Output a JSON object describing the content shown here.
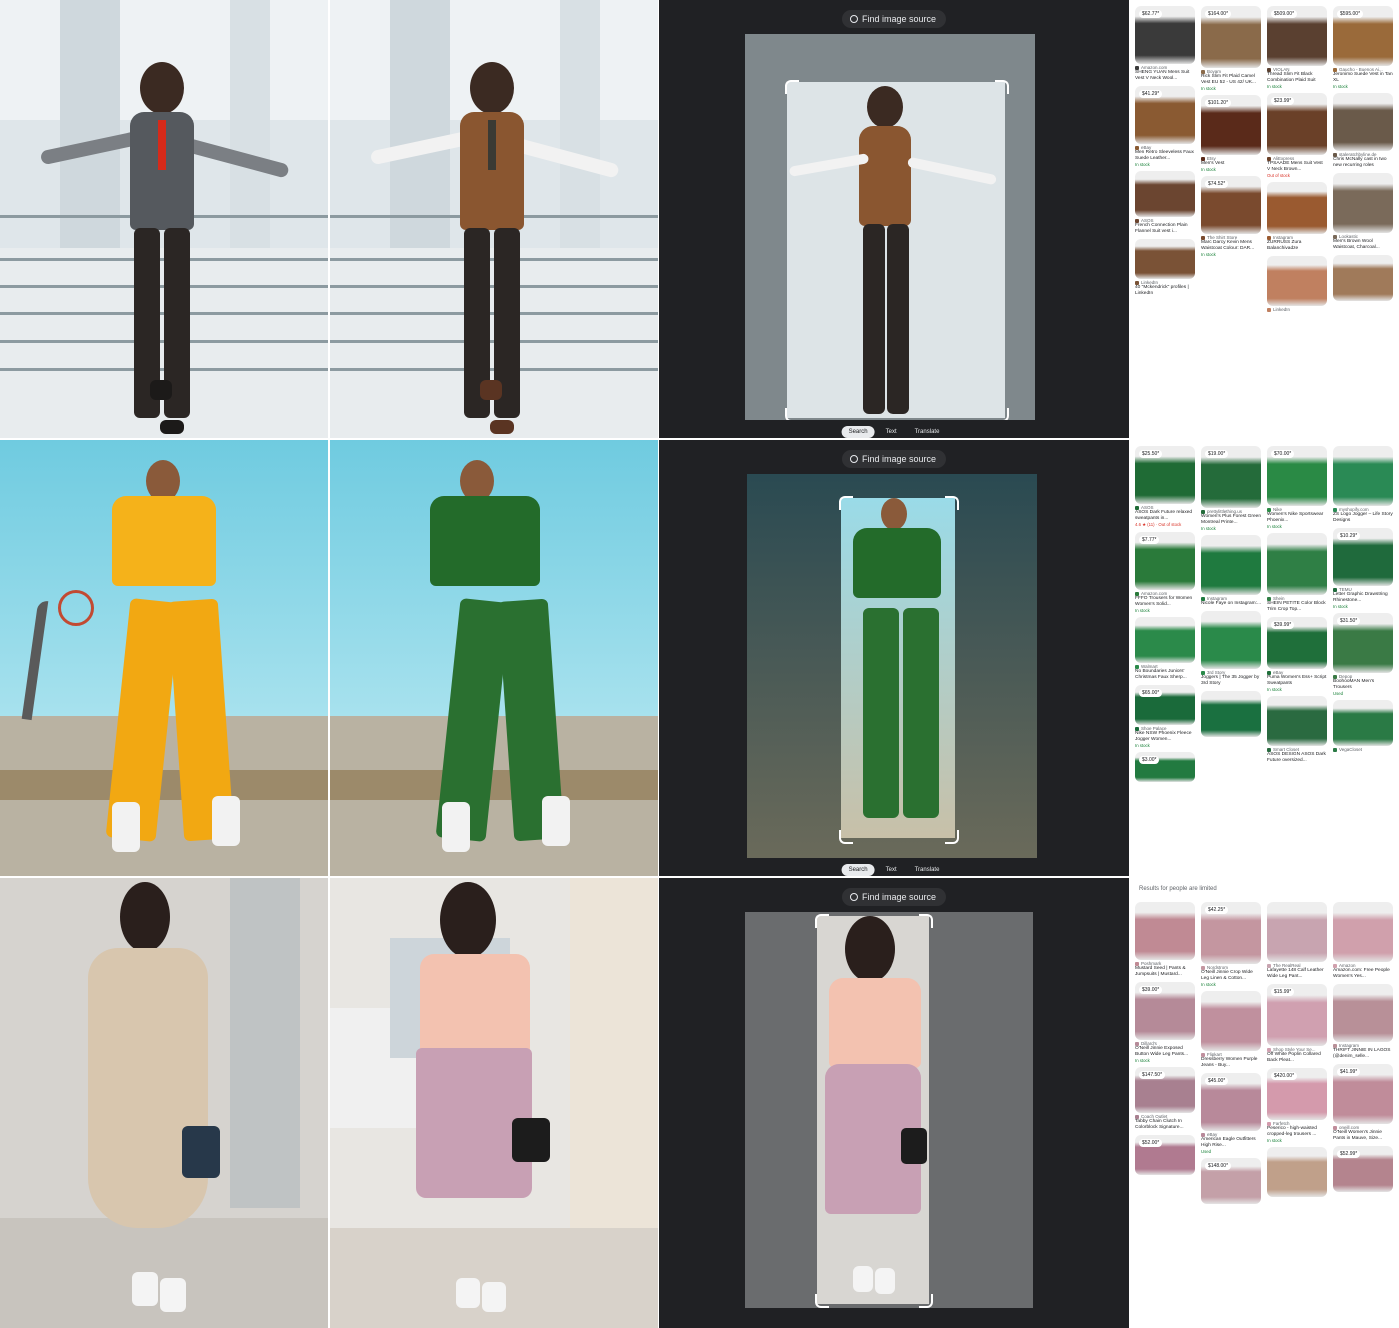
{
  "lens": {
    "find_source_label": "Find image source",
    "tabs": [
      "Search",
      "Text",
      "Translate"
    ],
    "active_tab": "Search"
  },
  "colors": {
    "lens_bg": "#202124",
    "stock_green": "#188038",
    "stock_red": "#d93025"
  },
  "rows": [
    {
      "name": "row-1",
      "notice": "",
      "results": [
        [
          {
            "price": "$62.77*",
            "source": "Amazon.com",
            "title": "SHENG YUAN Mens Suit Vest V Neck Wool...",
            "stock": "",
            "color": "#3a3a3a"
          },
          {
            "price": "$41.29*",
            "source": "eBay",
            "title": "Men Retro Sleeveless Faux Suede Leather...",
            "stock": "In stock",
            "color": "#8a5a32"
          },
          {
            "price": "",
            "source": "ASOS",
            "title": "French Connection Plain Flannel Suit vest i...",
            "stock": "",
            "color": "#6b4530"
          },
          {
            "price": "",
            "source": "LinkedIn",
            "title": "40 \"Mckendrick\" profiles | LinkedIn",
            "stock": "",
            "color": "#7a5236"
          }
        ],
        [
          {
            "price": "$164.00*",
            "source": "Boyam",
            "title": "Rick Slim Fit Plaid Camel Vest EU 52 - US 42/ UK...",
            "stock": "In stock",
            "color": "#8a6a4a"
          },
          {
            "price": "$101.20*",
            "source": "Etsy",
            "title": "Men's Vest",
            "stock": "In stock",
            "color": "#5a2a1a"
          },
          {
            "price": "$74.52*",
            "source": "The Shirt Store",
            "title": "Marc Darcy Kevin Mens Waistcoat Colour: DAR...",
            "stock": "In stock",
            "color": "#7a4a2e"
          }
        ],
        [
          {
            "price": "$509.00*",
            "source": "VIOLAN",
            "title": "Thread Slim Fit Black Combination Plaid Suit",
            "stock": "In stock",
            "color": "#5a4030"
          },
          {
            "price": "$23.99*",
            "source": "AliExpress",
            "title": "TPSAADE Mens Suit Vest V Neck Brown...",
            "stock": "Out of stock",
            "color": "#6a4028"
          },
          {
            "price": "",
            "source": "Instagram",
            "title": "ZURRUSS Zura Balanchivadze",
            "stock": "",
            "color": "#9a5a30"
          },
          {
            "price": "",
            "source": "LinkedIn",
            "title": "",
            "stock": "",
            "color": "#c08060"
          }
        ],
        [
          {
            "price": "$595.00*",
            "source": "Gaucho - Buenos Ai...",
            "title": "Jeronimo Suede Vest in Tan XL",
            "stock": "In stock",
            "color": "#9a6a3a"
          },
          {
            "price": "",
            "source": "staleratchbyline.de",
            "title": "Chris McNally cast in two new recurring roles",
            "stock": "",
            "color": "#6a5a4a"
          },
          {
            "price": "",
            "source": "Lookastic",
            "title": "Men's Brown Wool Waistcoat, Charcoal...",
            "stock": "",
            "color": "#7a6a5a"
          },
          {
            "price": "",
            "source": "",
            "title": "",
            "stock": "",
            "color": "#a07a5a"
          }
        ]
      ]
    },
    {
      "name": "row-2",
      "notice": "",
      "results": [
        [
          {
            "price": "$25.50*",
            "source": "ASOS",
            "title": "ASOS Dark Future relaxed sweatpants in...",
            "stock": "4.6 ★ (11) · Out of stock",
            "color": "#1f6b35"
          },
          {
            "price": "$7.77*",
            "source": "Amazon.com",
            "title": "FFFO Trousers for Women Women's Solid...",
            "stock": "In stock",
            "color": "#2a7a3a"
          },
          {
            "price": "",
            "source": "Walmart",
            "title": "No Boundaries Juniors' Christmas Faux Sherp...",
            "stock": "",
            "color": "#2b8a4a"
          },
          {
            "price": "$65.00*",
            "source": "Shoe Palace",
            "title": "Nike NSW Phoenix Fleece Jogger Women...",
            "stock": "In stock",
            "color": "#1a6a3a"
          },
          {
            "price": "$3.00*",
            "source": "",
            "title": "",
            "stock": "",
            "color": "#227a40"
          }
        ],
        [
          {
            "price": "$19.00*",
            "source": "prettylittlething.us",
            "title": "Women's Plus Forest Green Montreal Printe...",
            "stock": "In stock",
            "color": "#246b3a"
          },
          {
            "price": "",
            "source": "Instagram",
            "title": "Nicole Faye on Instagram:...",
            "stock": "",
            "color": "#1f7a3f"
          },
          {
            "price": "",
            "source": "3rd Story",
            "title": "Joggers | The 35 Jogger by 3rd Story",
            "stock": "",
            "color": "#2a8a4a"
          },
          {
            "price": "",
            "source": "",
            "title": "",
            "stock": "",
            "color": "#1a7040"
          }
        ],
        [
          {
            "price": "$70.00*",
            "source": "Nike",
            "title": "Women's Nike Sportswear Phoenix...",
            "stock": "In stock",
            "color": "#2a8a45"
          },
          {
            "price": "",
            "source": "Shein",
            "title": "SHEIN PETITE Color Block Trim Crop Top...",
            "stock": "",
            "color": "#2f7f45"
          },
          {
            "price": "$39.99*",
            "source": "eBay",
            "title": "Puma Women's Ess+ Script Sweatpants",
            "stock": "In stock",
            "color": "#1f6f3a"
          },
          {
            "price": "",
            "source": "Smart Closet",
            "title": "ASOS DESIGN ASOS Dark Future oversized...",
            "stock": "",
            "color": "#2a6a40"
          }
        ],
        [
          {
            "price": "",
            "source": "myshopify.com",
            "title": "ZS Logo Jogger – Life Story Designs",
            "stock": "",
            "color": "#2a8a55"
          },
          {
            "price": "$10.29*",
            "source": "TEMU",
            "title": "Letter Graphic Drawstring Rhinestone...",
            "stock": "In stock",
            "color": "#1f6a3c"
          },
          {
            "price": "$31.50*",
            "source": "Depop",
            "title": "BoohooMAN Men's Trousers",
            "stock": "Used",
            "color": "#3a7a45"
          },
          {
            "price": "",
            "source": "VegaCloset",
            "title": "",
            "stock": "",
            "color": "#2a7a45"
          }
        ]
      ]
    },
    {
      "name": "row-3",
      "notice": "Results for people are limited",
      "results": [
        [
          {
            "price": "",
            "source": "Poshmark",
            "title": "Mustard Seed | Pants & Jumpsuits | Mustard...",
            "stock": "",
            "color": "#c08a94"
          },
          {
            "price": "$39.00*",
            "source": "Dillard's",
            "title": "O'Neill Jinnie Exposed Button Wide Leg Pants...",
            "stock": "In stock",
            "color": "#b58a98"
          },
          {
            "price": "$147.50*",
            "source": "Coach Outlet",
            "title": "Tabby Chain Clutch In Colorblock Signature...",
            "stock": "",
            "color": "#a88090"
          },
          {
            "price": "$52.00*",
            "source": "",
            "title": "",
            "stock": "",
            "color": "#b07a90"
          }
        ],
        [
          {
            "price": "$42.25*",
            "source": "Nordstrom",
            "title": "O'Neill Jinnie Crop Wide Leg Linen & Cotton...",
            "stock": "In stock",
            "color": "#c496a0"
          },
          {
            "price": "",
            "source": "Flipkart",
            "title": "Dressberry Women Purple Jeans - Buy...",
            "stock": "",
            "color": "#c0909e"
          },
          {
            "price": "$45.00*",
            "source": "eBay",
            "title": "American Eagle Outfitters High Rise...",
            "stock": "Used",
            "color": "#b8899a"
          },
          {
            "price": "$148.00*",
            "source": "",
            "title": "",
            "stock": "",
            "color": "#c4a0a8"
          }
        ],
        [
          {
            "price": "",
            "source": "The RealReal",
            "title": "Lafayette 148 Calf Leather Wide Leg Pant...",
            "stock": "",
            "color": "#c8a4b0"
          },
          {
            "price": "$15.99*",
            "source": "Shop Style Your Se...",
            "title": "Off White Poplin Collared Back Pleat...",
            "stock": "",
            "color": "#d0a0b0"
          },
          {
            "price": "$420.00*",
            "source": "Farfetch",
            "title": "Peserico - high-waisted cropped-leg trousers ...",
            "stock": "In stock",
            "color": "#d49aac"
          },
          {
            "price": "",
            "source": "",
            "title": "",
            "stock": "",
            "color": "#c0a08a"
          }
        ],
        [
          {
            "price": "",
            "source": "Amazon",
            "title": "Amazon.com: Free People Women's Yes...",
            "stock": "",
            "color": "#d0a0ac"
          },
          {
            "price": "",
            "source": "Instagram",
            "title": "THRIFT JINNIE IN LAGOS (@denim_selle...",
            "stock": "",
            "color": "#b89098"
          },
          {
            "price": "$41.99*",
            "source": "oneill.com",
            "title": "O'Neill Women's Jinnie Pants in Mauve, Size...",
            "stock": "",
            "color": "#c08c9a"
          },
          {
            "price": "$52.99*",
            "source": "",
            "title": "",
            "stock": "",
            "color": "#b4848e"
          }
        ]
      ]
    }
  ]
}
